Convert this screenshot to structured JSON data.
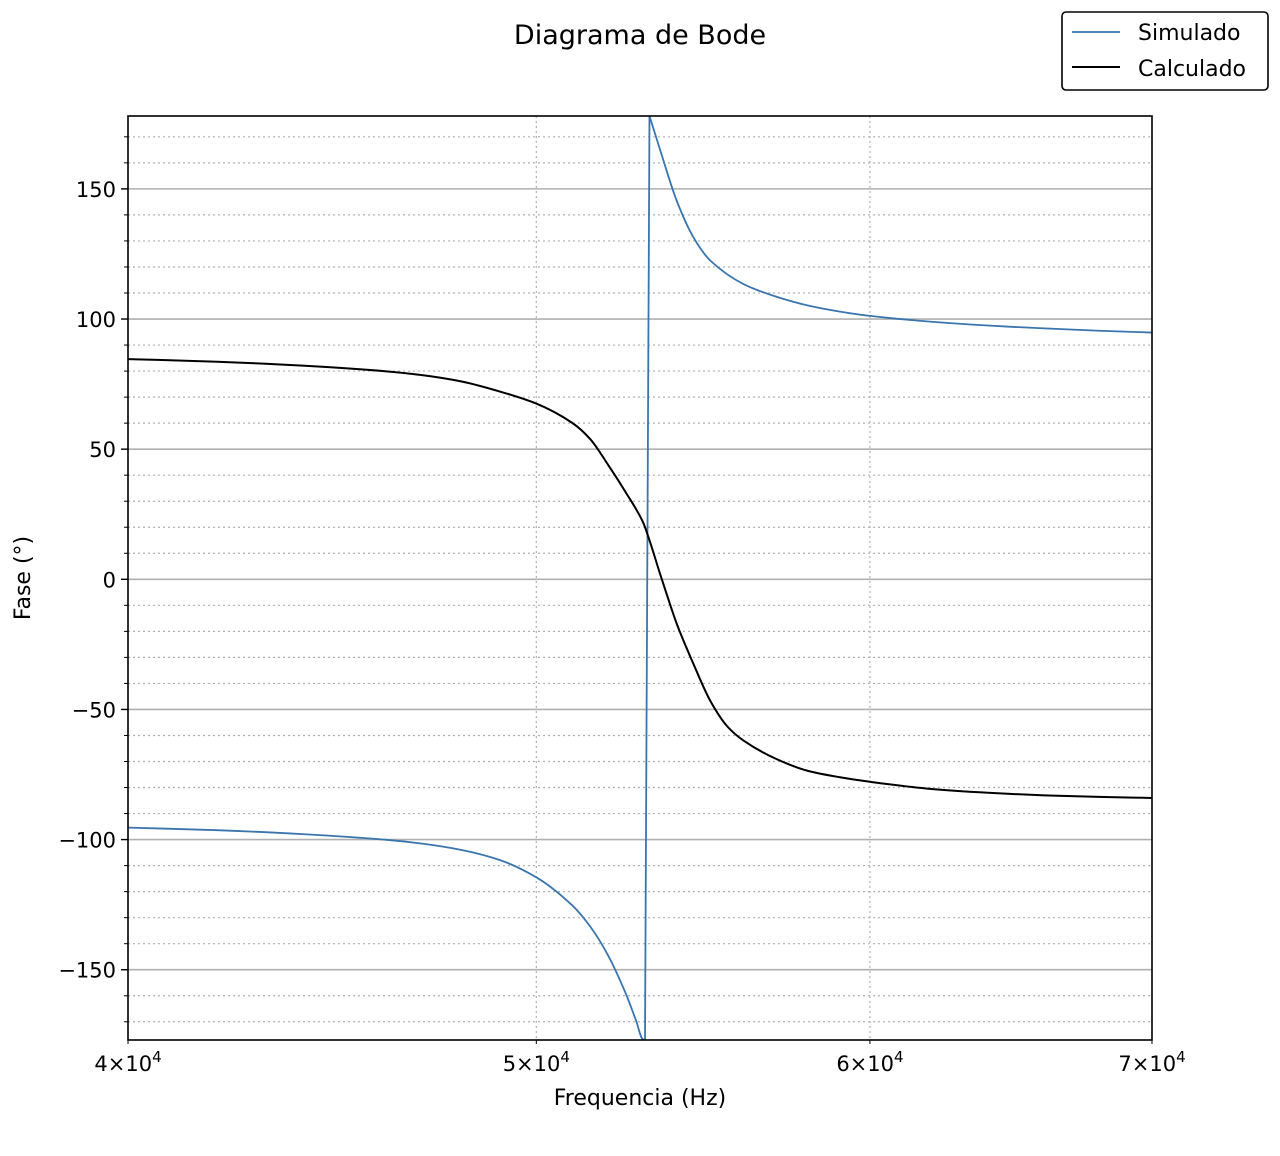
{
  "chart_data": {
    "type": "line",
    "title": "Diagrama de Bode",
    "xlabel": "Frequencia (Hz)",
    "ylabel": "Fase (°)",
    "x_scale": "log",
    "xlim": [
      40000,
      70000
    ],
    "ylim": [
      -177,
      178
    ],
    "x_ticks": [
      {
        "value": 40000,
        "mantissa": "4",
        "times": "×",
        "base": "10",
        "exponent": "4"
      },
      {
        "value": 50000,
        "mantissa": "5",
        "times": "×",
        "base": "10",
        "exponent": "4"
      },
      {
        "value": 60000,
        "mantissa": "6",
        "times": "×",
        "base": "10",
        "exponent": "4"
      },
      {
        "value": 70000,
        "mantissa": "7",
        "times": "×",
        "base": "10",
        "exponent": "4"
      }
    ],
    "y_ticks": [
      {
        "value": 150,
        "label": "150"
      },
      {
        "value": 100,
        "label": "100"
      },
      {
        "value": 50,
        "label": "50"
      },
      {
        "value": 0,
        "label": "0"
      },
      {
        "value": -50,
        "label": "−50"
      },
      {
        "value": -100,
        "label": "−100"
      },
      {
        "value": -150,
        "label": "−150"
      }
    ],
    "grid": {
      "major": true,
      "minor": true
    },
    "legend": {
      "position": "top-right, outside plot"
    },
    "series": [
      {
        "name": "Simulado",
        "color": "#3a75ae",
        "x": [
          40000,
          42000,
          44000,
          46000,
          47000,
          48000,
          49000,
          50000,
          51000,
          51500,
          52000,
          52500,
          52800,
          53000,
          53060,
          53190,
          53500,
          54000,
          54500,
          55000,
          56000,
          57000,
          58000,
          59000,
          60000,
          62000,
          64000,
          66000,
          68000,
          70000
        ],
        "y": [
          -95.4,
          -96.4,
          -97.9,
          -100.0,
          -101.6,
          -104.0,
          -107.8,
          -114.5,
          -125.4,
          -133.5,
          -144.5,
          -159.0,
          -169.5,
          -176.8,
          -177.0,
          178.0,
          165.0,
          145.0,
          131.0,
          122.3,
          113.4,
          108.6,
          105.2,
          102.9,
          101.2,
          99.0,
          97.5,
          96.4,
          95.5,
          94.8
        ]
      },
      {
        "name": "Calculado",
        "color": "#000000",
        "x": [
          40000,
          42000,
          44000,
          46000,
          47000,
          48000,
          49000,
          50000,
          51000,
          51500,
          52000,
          52500,
          53000,
          53190,
          53500,
          53800,
          54000,
          54500,
          55000,
          55500,
          56000,
          57000,
          58000,
          59000,
          60000,
          62000,
          64000,
          66000,
          68000,
          70000
        ],
        "y": [
          84.6,
          83.6,
          82.1,
          80.0,
          78.4,
          76.0,
          72.2,
          67.5,
          60.0,
          53.8,
          44.0,
          33.5,
          22.0,
          15.0,
          2.0,
          -10.0,
          -17.5,
          -33.0,
          -47.0,
          -56.5,
          -62.0,
          -69.0,
          -73.6,
          -76.0,
          -77.8,
          -80.5,
          -82.0,
          -83.0,
          -83.6,
          -84.0
        ]
      }
    ]
  }
}
